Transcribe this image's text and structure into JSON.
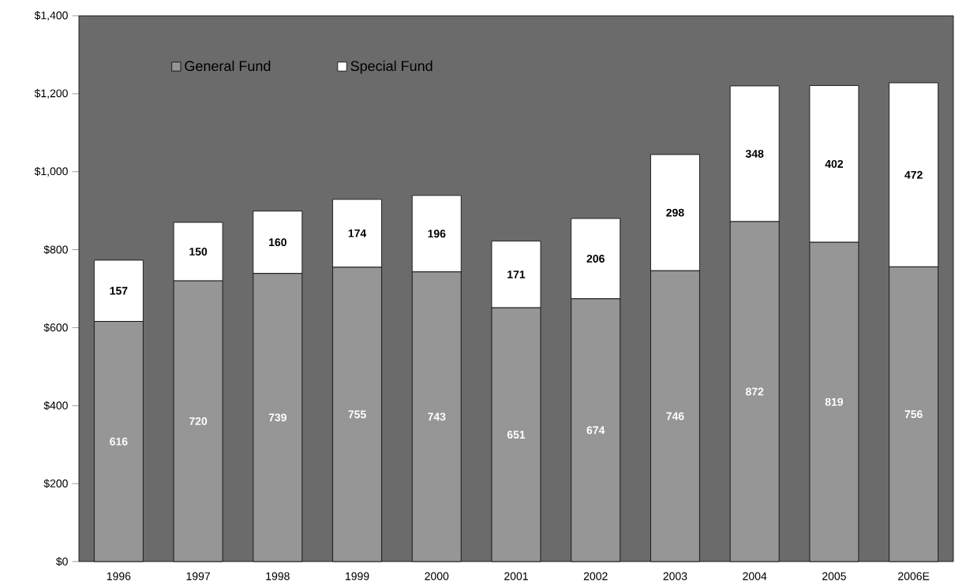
{
  "chart_data": {
    "type": "bar",
    "stacked": true,
    "categories": [
      "1996",
      "1997",
      "1998",
      "1999",
      "2000",
      "2001",
      "2002",
      "2003",
      "2004",
      "2005",
      "2006E"
    ],
    "series": [
      {
        "name": "General Fund",
        "color": "#969696",
        "values": [
          616,
          720,
          739,
          755,
          743,
          651,
          674,
          746,
          872,
          819,
          756
        ]
      },
      {
        "name": "Special Fund",
        "color": "#ffffff",
        "values": [
          157,
          150,
          160,
          174,
          196,
          171,
          206,
          298,
          348,
          402,
          472
        ]
      }
    ],
    "ylim": [
      0,
      1400
    ],
    "yticks": [
      {
        "value": 0,
        "label": "$0"
      },
      {
        "value": 200,
        "label": "$200"
      },
      {
        "value": 400,
        "label": "$400"
      },
      {
        "value": 600,
        "label": "$600"
      },
      {
        "value": 800,
        "label": "$800"
      },
      {
        "value": 1000,
        "label": "$1,000"
      },
      {
        "value": 1200,
        "label": "$1,200"
      },
      {
        "value": 1400,
        "label": "$1,400"
      }
    ],
    "data_labels": true,
    "legend": "top left",
    "grid": false
  }
}
